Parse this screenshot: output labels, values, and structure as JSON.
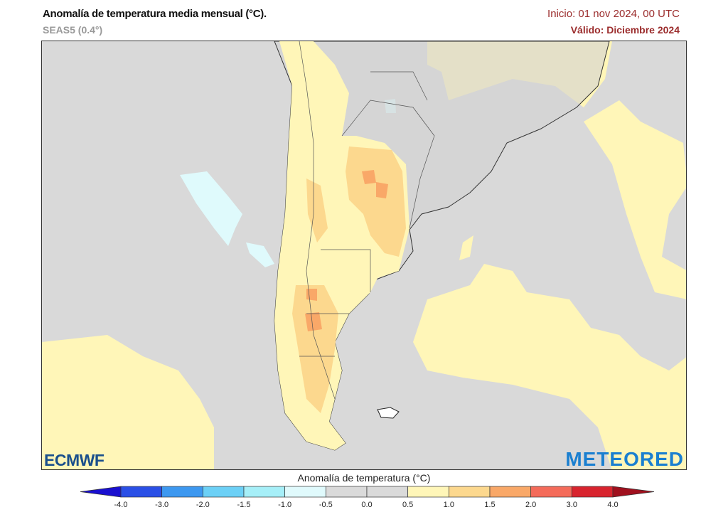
{
  "header": {
    "title": "Anomalía de temperatura media mensual (°C).",
    "subtitle": "SEAS5 (0.4°)",
    "init": "Inicio: 01 nov 2024, 00 UTC",
    "valid": "Válido: Diciembre 2024"
  },
  "logos": {
    "left": "ECMWF",
    "right": "METEORED"
  },
  "colorbar": {
    "title": "Anomalía de temperatura (°C)",
    "labels": [
      "-4.0",
      "-3.0",
      "-2.0",
      "-1.5",
      "-1.0",
      "-0.5",
      "0.0",
      "0.5",
      "1.0",
      "1.5",
      "2.0",
      "3.0",
      "4.0"
    ],
    "under_color": "#1a10d0",
    "over_color": "#a0101e",
    "colors": [
      "#2a4fe6",
      "#3d98f0",
      "#6cd0f6",
      "#a6eff8",
      "#e0fafc",
      "#dadada",
      "#dadada",
      "#fff6b8",
      "#fcd88e",
      "#f9a868",
      "#f46b5a",
      "#d8242e"
    ]
  },
  "map": {
    "background": "#d9d9d9",
    "land": "#d2d2d2",
    "anomaly_colors": {
      "light_blue": "#dffafc",
      "yellow": "#fff6b8",
      "light_orange": "#fcd88e",
      "orange": "#f9a868"
    }
  }
}
